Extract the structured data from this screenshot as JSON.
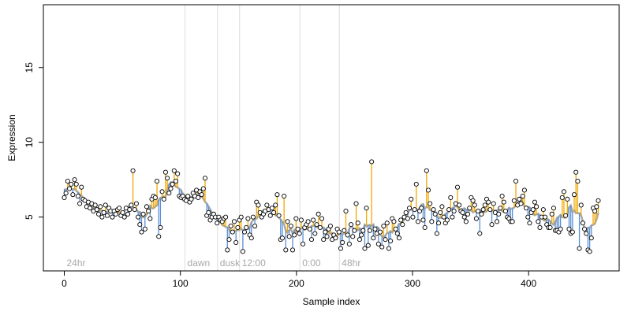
{
  "chart_data": {
    "type": "scatter",
    "title": "",
    "xlabel": "Sample index",
    "ylabel": "Expression",
    "xlim": [
      -18,
      478
    ],
    "ylim": [
      1.4,
      19.2
    ],
    "x_ticks": [
      0,
      100,
      200,
      300,
      400
    ],
    "y_ticks": [
      5,
      10,
      15
    ],
    "grid": false,
    "legend": "none",
    "colors": {
      "above_line": "#f0a800",
      "below_line": "#5a8fd6",
      "smooth_line": "#a9a9a9",
      "point_fill": "#ffffff",
      "point_stroke": "#000000",
      "divider": "#dddddd",
      "region_label": "#a8a8a8"
    },
    "regions": [
      {
        "x": 0,
        "label": "24hr"
      },
      {
        "x": 104,
        "label": "dawn"
      },
      {
        "x": 132,
        "label": "dusk"
      },
      {
        "x": 151,
        "label": "12:00"
      },
      {
        "x": 203,
        "label": "0:00"
      },
      {
        "x": 237,
        "label": "48hr"
      }
    ],
    "dividers": [
      104,
      132,
      151,
      203,
      237
    ],
    "series": [
      {
        "values": [
          6.3,
          6.6,
          7.4,
          6.9,
          7.2,
          6.5,
          7.5,
          7.2,
          6.4,
          5.9,
          7.0,
          6.2,
          6.1,
          5.7,
          6.0,
          5.6,
          5.9,
          5.4,
          5.8,
          5.5,
          5.2,
          5.7,
          5.0,
          5.3,
          5.8,
          5.1,
          5.6,
          5.4,
          5.0,
          5.4,
          5.2,
          5.5,
          5.6,
          5.1,
          5.3,
          5.0,
          5.6,
          5.2,
          5.5,
          5.8,
          8.1,
          5.5,
          5.9,
          5.0,
          4.5,
          4.0,
          5.2,
          4.2,
          5.7,
          5.4,
          4.9,
          6.2,
          6.4,
          6.3,
          7.4,
          3.7,
          4.3,
          6.7,
          6.2,
          8.0,
          7.6,
          6.6,
          6.9,
          7.2,
          8.1,
          7.4,
          7.9,
          6.4,
          6.3,
          6.4,
          6.2,
          6.1,
          6.4,
          6.0,
          6.2,
          6.6,
          6.4,
          6.8,
          6.3,
          6.7,
          6.5,
          6.9,
          7.6,
          5.1,
          5.3,
          4.8,
          5.0,
          5.2,
          5.0,
          4.6,
          5.0,
          4.8,
          4.7,
          4.9,
          5.0,
          2.8,
          3.5,
          4.4,
          4.0,
          4.7,
          3.3,
          4.3,
          4.8,
          5.0,
          2.7,
          4.0,
          4.3,
          4.9,
          3.8,
          3.6,
          5.0,
          4.4,
          6.0,
          5.8,
          5.3,
          5.0,
          5.2,
          5.4,
          5.8,
          5.5,
          5.1,
          5.6,
          5.3,
          5.8,
          6.5,
          5.1,
          3.5,
          3.6,
          6.4,
          2.8,
          4.7,
          3.7,
          4.4,
          2.8,
          3.8,
          4.9,
          4.2,
          3.9,
          4.8,
          3.2,
          4.3,
          4.5,
          4.7,
          4.2,
          3.5,
          4.8,
          3.9,
          4.5,
          5.2,
          4.3,
          4.9,
          3.5,
          4.0,
          3.7,
          4.2,
          4.4,
          3.5,
          3.8,
          3.6,
          4.2,
          4.0,
          2.9,
          3.3,
          4.1,
          5.4,
          3.8,
          3.2,
          4.5,
          3.7,
          4.1,
          5.9,
          4.6,
          3.5,
          3.8,
          4.1,
          2.9,
          5.6,
          3.1,
          4.1,
          8.7,
          3.6,
          4.2,
          3.9,
          3.2,
          4.0,
          3.0,
          4.4,
          3.5,
          4.6,
          2.9,
          3.4,
          4.9,
          4.7,
          4.2,
          3.9,
          3.6,
          4.8,
          4.5,
          5.0,
          5.3,
          4.9,
          5.6,
          6.2,
          5.0,
          5.5,
          7.2,
          4.7,
          5.4,
          5.6,
          4.8,
          4.3,
          8.1,
          6.8,
          5.9,
          4.7,
          5.5,
          5.2,
          3.9,
          4.6,
          5.3,
          5.7,
          5.0,
          4.6,
          4.8,
          5.5,
          6.3,
          5.0,
          5.4,
          5.9,
          7.0,
          5.8,
          5.4,
          5.3,
          5.0,
          4.7,
          5.2,
          5.6,
          6.3,
          6.1,
          5.8,
          4.9,
          5.4,
          3.9,
          5.2,
          5.5,
          5.8,
          6.2,
          6.0,
          5.5,
          4.5,
          5.9,
          5.3,
          4.7,
          5.2,
          5.6,
          6.4,
          6.0,
          5.4,
          5.0,
          4.9,
          4.7,
          4.7,
          6.1,
          7.4,
          5.8,
          6.2,
          5.9,
          6.4,
          6.8,
          5.6,
          5.0,
          4.6,
          5.3,
          5.5,
          6.0,
          5.7,
          4.7,
          4.3,
          5.0,
          5.5,
          5.0,
          4.5,
          4.3,
          4.3,
          5.2,
          5.6,
          4.1,
          4.1,
          4.0,
          4.2,
          6.3,
          6.7,
          5.1,
          6.2,
          4.2,
          3.9,
          4.0,
          6.5,
          8.0,
          7.4,
          2.9,
          5.8,
          4.6,
          4.2,
          3.9,
          2.8,
          2.7,
          3.6,
          5.6,
          5.4,
          5.7,
          6.1
        ]
      }
    ]
  }
}
